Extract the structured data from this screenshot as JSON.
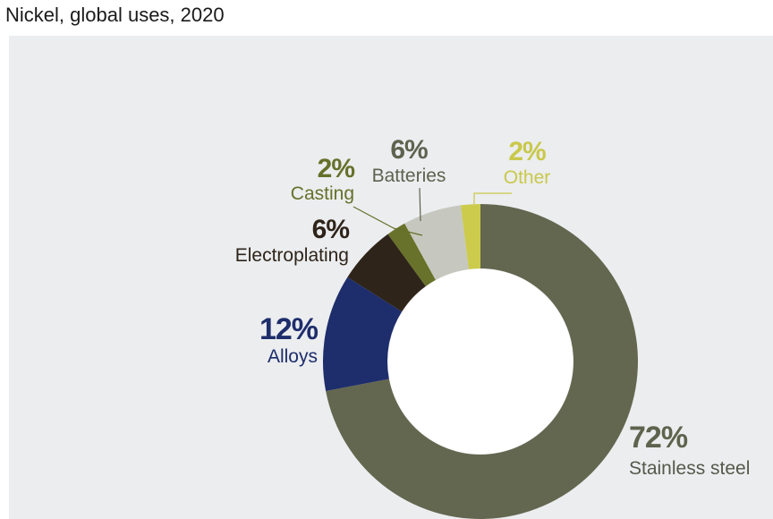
{
  "title": "Nickel, global uses, 2020",
  "chart_data": {
    "type": "pie",
    "style": "donut",
    "slices": [
      {
        "label": "Stainless steel",
        "value": 72,
        "value_text": "72%",
        "color": "#63674f",
        "value_color": "#5f634d",
        "label_color": "#55594a"
      },
      {
        "label": "Alloys",
        "value": 12,
        "value_text": "12%",
        "color": "#1e2d6b",
        "value_color": "#1e2d6b",
        "label_color": "#1e2d6b"
      },
      {
        "label": "Electroplating",
        "value": 6,
        "value_text": "6%",
        "color": "#2e2419",
        "value_color": "#2e2419",
        "label_color": "#2e2419"
      },
      {
        "label": "Casting",
        "value": 2,
        "value_text": "2%",
        "color": "#68722a",
        "value_color": "#67702a",
        "label_color": "#67702a"
      },
      {
        "label": "Batteries",
        "value": 6,
        "value_text": "6%",
        "color": "#c6c8bf",
        "value_color": "#5e624e",
        "label_color": "#5e624e"
      },
      {
        "label": "Other",
        "value": 2,
        "value_text": "2%",
        "color": "#cccb4c",
        "value_color": "#c9c84a",
        "label_color": "#c9c84a"
      }
    ],
    "legend": "direct labels"
  }
}
